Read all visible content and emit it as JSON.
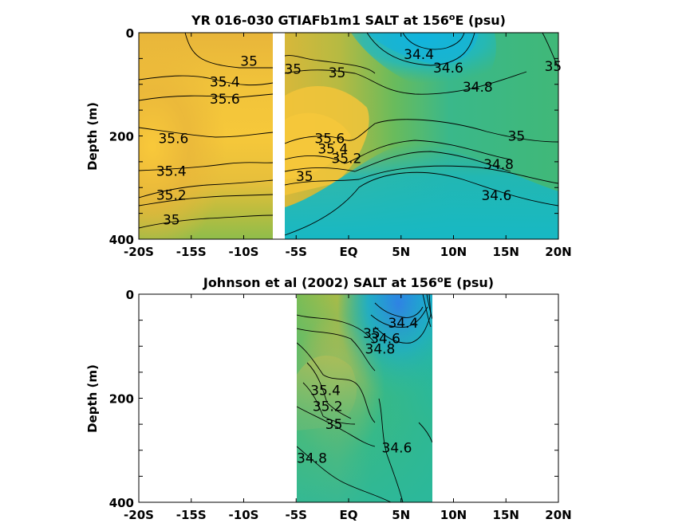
{
  "chart_data": [
    {
      "type": "heatmap",
      "title_prefix": "YR 016-030 GTIAFb1m1 SALT at 156",
      "title_sup": "o",
      "title_suffix": "E (psu)",
      "ylabel": "Depth (m)",
      "x_ticks": [
        "-20S",
        "-15S",
        "-10S",
        "-5S",
        "EQ",
        "5N",
        "10N",
        "15N",
        "20N"
      ],
      "x_tick_values": [
        -20,
        -15,
        -10,
        -5,
        0,
        5,
        10,
        15,
        20
      ],
      "y_ticks": [
        "0",
        "200",
        "400"
      ],
      "y_tick_values": [
        0,
        200,
        400
      ],
      "xlim": [
        -20,
        20
      ],
      "ylim": [
        400,
        0
      ],
      "gap_lat": [
        -7.3,
        -6.6
      ],
      "contour_labels": [
        {
          "text": "35",
          "lat": -9.5,
          "depth": 55
        },
        {
          "text": "35",
          "lat": -5.3,
          "depth": 70
        },
        {
          "text": "35.4",
          "lat": -11.8,
          "depth": 95
        },
        {
          "text": "35.6",
          "lat": -11.8,
          "depth": 128
        },
        {
          "text": "35.6",
          "lat": -16.7,
          "depth": 205
        },
        {
          "text": "35.4",
          "lat": -16.9,
          "depth": 268
        },
        {
          "text": "35.2",
          "lat": -16.9,
          "depth": 314
        },
        {
          "text": "35",
          "lat": -16.9,
          "depth": 362
        },
        {
          "text": "35",
          "lat": -4.2,
          "depth": 278
        },
        {
          "text": "35",
          "lat": -1.1,
          "depth": 77
        },
        {
          "text": "35.6",
          "lat": -1.8,
          "depth": 205
        },
        {
          "text": "35.4",
          "lat": -1.5,
          "depth": 225
        },
        {
          "text": "35.2",
          "lat": -0.2,
          "depth": 243
        },
        {
          "text": "34.4",
          "lat": 6.7,
          "depth": 42
        },
        {
          "text": "34.6",
          "lat": 9.5,
          "depth": 68
        },
        {
          "text": "34.8",
          "lat": 12.3,
          "depth": 105
        },
        {
          "text": "35",
          "lat": 16.0,
          "depth": 200
        },
        {
          "text": "34.8",
          "lat": 14.3,
          "depth": 255
        },
        {
          "text": "34.6",
          "lat": 14.1,
          "depth": 315
        },
        {
          "text": "35",
          "lat": 19.5,
          "depth": 65
        }
      ],
      "colormap": "parula",
      "salinity_range": [
        34.2,
        35.8
      ]
    },
    {
      "type": "heatmap",
      "title_prefix": "Johnson et al (2002) SALT at 156",
      "title_sup": "o",
      "title_suffix": "E (psu)",
      "ylabel": "Depth (m)",
      "x_ticks": [
        "-20S",
        "-15S",
        "-10S",
        "-5S",
        "EQ",
        "5N",
        "10N",
        "15N",
        "20N"
      ],
      "x_tick_values": [
        -20,
        -15,
        -10,
        -5,
        0,
        5,
        10,
        15,
        20
      ],
      "y_ticks": [
        "0",
        "200",
        "400"
      ],
      "y_tick_values": [
        0,
        200,
        400
      ],
      "xlim": [
        -20,
        20
      ],
      "ylim": [
        400,
        0
      ],
      "data_lat_range": [
        -5,
        8
      ],
      "contour_labels": [
        {
          "text": "35.4",
          "lat": -2.2,
          "depth": 185
        },
        {
          "text": "35.2",
          "lat": -2.0,
          "depth": 215
        },
        {
          "text": "35",
          "lat": -1.4,
          "depth": 250
        },
        {
          "text": "34.8",
          "lat": -3.5,
          "depth": 315
        },
        {
          "text": "34.4",
          "lat": 5.2,
          "depth": 55
        },
        {
          "text": "34.6",
          "lat": 3.5,
          "depth": 85
        },
        {
          "text": "34.8",
          "lat": 3.0,
          "depth": 105
        },
        {
          "text": "35",
          "lat": 2.2,
          "depth": 75
        },
        {
          "text": "34.6",
          "lat": 4.6,
          "depth": 295
        }
      ],
      "colormap": "parula",
      "salinity_range": [
        34.2,
        35.8
      ]
    }
  ]
}
